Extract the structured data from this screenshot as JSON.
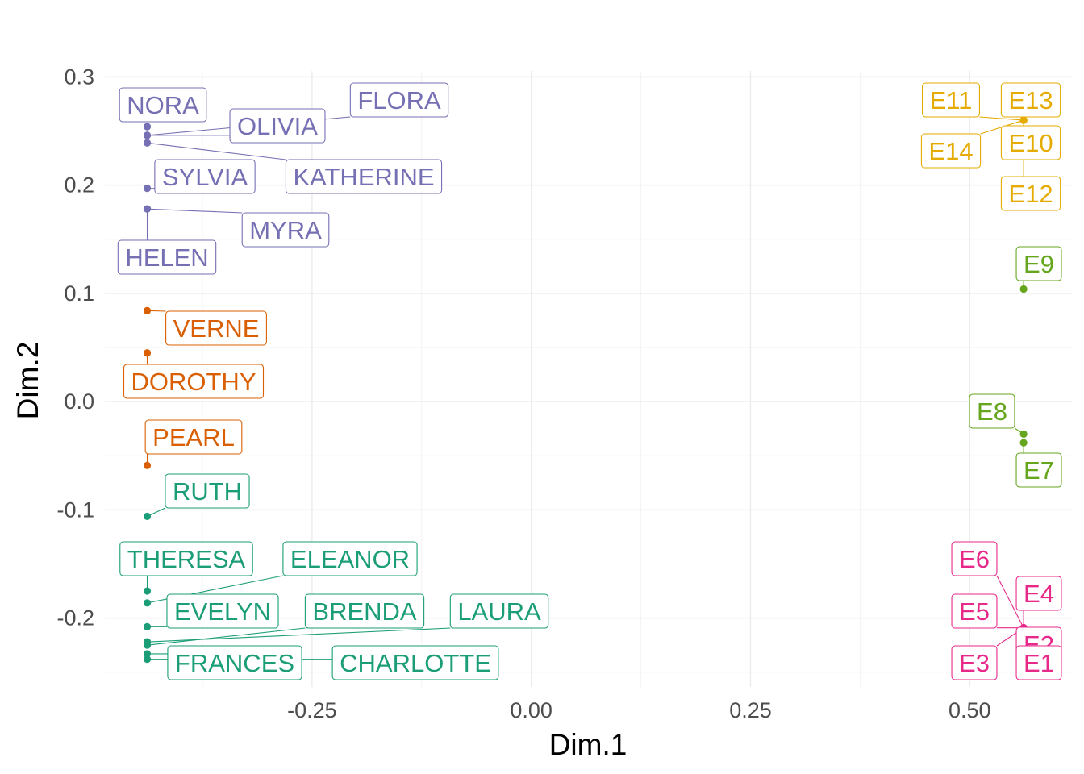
{
  "chart_data": {
    "type": "scatter",
    "xlabel": "Dim.1",
    "ylabel": "Dim.2",
    "xlim": [
      -0.4863,
      0.6175
    ],
    "ylim": [
      -0.2636,
      0.3055
    ],
    "xticks": [
      -0.25,
      0.0,
      0.25,
      0.5
    ],
    "xtick_labels": [
      "-0.25",
      "0.00",
      "0.25",
      "0.50"
    ],
    "yticks": [
      -0.2,
      -0.1,
      0.0,
      0.1,
      0.2,
      0.3
    ],
    "ytick_labels": [
      "-0.2",
      "-0.1",
      "0.0",
      "0.1",
      "0.2",
      "0.3"
    ],
    "grid": true,
    "series": [
      {
        "color": "#7570b3",
        "points": [
          {
            "label": "NORA",
            "x": -0.438,
            "y": 0.254
          },
          {
            "label": "FLORA",
            "x": -0.438,
            "y": 0.246
          },
          {
            "label": "OLIVIA",
            "x": -0.438,
            "y": 0.246
          },
          {
            "label": "KATHERINE",
            "x": -0.438,
            "y": 0.239
          },
          {
            "label": "SYLVIA",
            "x": -0.438,
            "y": 0.197
          },
          {
            "label": "MYRA",
            "x": -0.438,
            "y": 0.178
          },
          {
            "label": "HELEN",
            "x": -0.438,
            "y": 0.178
          }
        ]
      },
      {
        "color": "#d95f02",
        "points": [
          {
            "label": "VERNE",
            "x": -0.438,
            "y": 0.084
          },
          {
            "label": "DOROTHY",
            "x": -0.438,
            "y": 0.045
          },
          {
            "label": "PEARL",
            "x": -0.438,
            "y": -0.059
          }
        ]
      },
      {
        "color": "#1b9e77",
        "points": [
          {
            "label": "RUTH",
            "x": -0.438,
            "y": -0.106
          },
          {
            "label": "THERESA",
            "x": -0.438,
            "y": -0.175
          },
          {
            "label": "ELEANOR",
            "x": -0.438,
            "y": -0.186
          },
          {
            "label": "EVELYN",
            "x": -0.438,
            "y": -0.208
          },
          {
            "label": "LAURA",
            "x": -0.438,
            "y": -0.222
          },
          {
            "label": "BRENDA",
            "x": -0.438,
            "y": -0.225
          },
          {
            "label": "FRANCES",
            "x": -0.438,
            "y": -0.233
          },
          {
            "label": "CHARLOTTE",
            "x": -0.438,
            "y": -0.238
          }
        ]
      },
      {
        "color": "#e6ab02",
        "points": [
          {
            "label": "E11",
            "x": 0.5615,
            "y": 0.26
          },
          {
            "label": "E13",
            "x": 0.5615,
            "y": 0.26
          },
          {
            "label": "E14",
            "x": 0.5615,
            "y": 0.26
          },
          {
            "label": "E10",
            "x": 0.5615,
            "y": 0.26
          },
          {
            "label": "E12",
            "x": 0.5615,
            "y": 0.26
          }
        ]
      },
      {
        "color": "#66a61e",
        "points": [
          {
            "label": "E9",
            "x": 0.5615,
            "y": 0.104
          },
          {
            "label": "E8",
            "x": 0.5615,
            "y": -0.03
          },
          {
            "label": "E7",
            "x": 0.5615,
            "y": -0.038
          }
        ]
      },
      {
        "color": "#e7298a",
        "points": [
          {
            "label": "E6",
            "x": 0.5615,
            "y": -0.209
          },
          {
            "label": "E4",
            "x": 0.5615,
            "y": -0.209
          },
          {
            "label": "E5",
            "x": 0.5615,
            "y": -0.209
          },
          {
            "label": "E2",
            "x": 0.5615,
            "y": -0.209
          },
          {
            "label": "E3",
            "x": 0.5615,
            "y": -0.209
          },
          {
            "label": "E1",
            "x": 0.5615,
            "y": -0.209
          }
        ]
      }
    ]
  }
}
